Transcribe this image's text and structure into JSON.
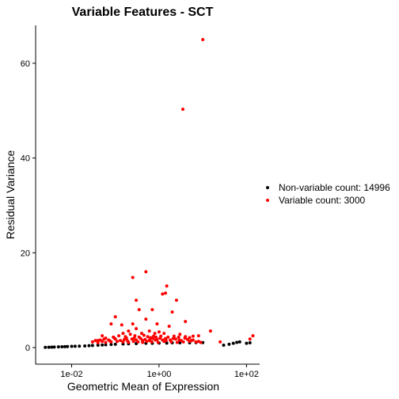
{
  "chart_data": {
    "type": "scatter",
    "title": "Variable Features - SCT",
    "xlabel": "Geometric Mean of Expression",
    "ylabel": "Residual Variance",
    "x_scale": "log10",
    "xlim": [
      0.0015,
      200
    ],
    "ylim": [
      -3.5,
      68
    ],
    "x_ticks": [
      0.01,
      1,
      100
    ],
    "x_tick_labels": [
      "1e-02",
      "1e+00",
      "1e+02"
    ],
    "y_ticks": [
      0,
      20,
      40,
      60
    ],
    "y_tick_labels": [
      "0",
      "20",
      "40",
      "60"
    ],
    "grid": false,
    "legend_position": "right",
    "series": [
      {
        "name": "Non-variable count: 14996",
        "color": "#000000",
        "points": [
          [
            0.0025,
            0.05
          ],
          [
            0.003,
            0.08
          ],
          [
            0.0035,
            0.1
          ],
          [
            0.004,
            0.12
          ],
          [
            0.005,
            0.15
          ],
          [
            0.006,
            0.18
          ],
          [
            0.007,
            0.2
          ],
          [
            0.008,
            0.22
          ],
          [
            0.01,
            0.25
          ],
          [
            0.012,
            0.28
          ],
          [
            0.015,
            0.3
          ],
          [
            0.02,
            0.35
          ],
          [
            0.025,
            0.4
          ],
          [
            0.03,
            0.45
          ],
          [
            0.04,
            0.5
          ],
          [
            0.05,
            0.55
          ],
          [
            0.06,
            0.6
          ],
          [
            0.08,
            0.65
          ],
          [
            0.1,
            0.7
          ],
          [
            0.15,
            0.75
          ],
          [
            0.2,
            0.8
          ],
          [
            0.3,
            0.85
          ],
          [
            0.5,
            0.9
          ],
          [
            0.7,
            0.9
          ],
          [
            1,
            0.95
          ],
          [
            1.5,
            0.95
          ],
          [
            2,
            1.0
          ],
          [
            3,
            1.0
          ],
          [
            5,
            1.0
          ],
          [
            7,
            1.05
          ],
          [
            10,
            1.05
          ],
          [
            30,
            0.5
          ],
          [
            40,
            0.7
          ],
          [
            50,
            0.9
          ],
          [
            60,
            1.1
          ],
          [
            70,
            1.2
          ],
          [
            100,
            0.9
          ],
          [
            120,
            1.0
          ]
        ]
      },
      {
        "name": "Variable count: 3000",
        "color": "#ff0000",
        "points": [
          [
            10,
            65
          ],
          [
            3.5,
            50.3
          ],
          [
            0.5,
            16
          ],
          [
            0.25,
            14.8
          ],
          [
            1.5,
            13
          ],
          [
            1.4,
            11.5
          ],
          [
            1.2,
            11.3
          ],
          [
            0.3,
            10
          ],
          [
            2.5,
            10
          ],
          [
            0.7,
            8
          ],
          [
            0.35,
            8
          ],
          [
            2,
            7.5
          ],
          [
            0.1,
            6.5
          ],
          [
            0.5,
            6
          ],
          [
            4,
            5.5
          ],
          [
            0.08,
            5
          ],
          [
            0.14,
            4.8
          ],
          [
            0.25,
            5
          ],
          [
            0.9,
            5
          ],
          [
            1.7,
            4.5
          ],
          [
            0.3,
            4
          ],
          [
            0.2,
            3.5
          ],
          [
            0.6,
            3.5
          ],
          [
            1,
            3.3
          ],
          [
            15,
            3.5
          ],
          [
            0.05,
            2.5
          ],
          [
            0.15,
            3
          ],
          [
            0.4,
            3
          ],
          [
            0.8,
            3
          ],
          [
            1.3,
            3
          ],
          [
            3,
            2.8
          ],
          [
            8,
            2.5
          ],
          [
            0.04,
            1.5
          ],
          [
            0.06,
            2
          ],
          [
            0.09,
            2.2
          ],
          [
            0.12,
            2.5
          ],
          [
            0.18,
            2
          ],
          [
            0.22,
            2.8
          ],
          [
            0.28,
            2.5
          ],
          [
            0.35,
            2.2
          ],
          [
            0.45,
            2.6
          ],
          [
            0.55,
            2.3
          ],
          [
            0.65,
            2.1
          ],
          [
            0.75,
            2.4
          ],
          [
            0.85,
            2.2
          ],
          [
            1.1,
            2.4
          ],
          [
            1.6,
            2.2
          ],
          [
            2.2,
            2.4
          ],
          [
            2.8,
            2.2
          ],
          [
            4,
            2.3
          ],
          [
            5,
            2.1
          ],
          [
            6,
            2.4
          ],
          [
            0.03,
            1.2
          ],
          [
            0.035,
            1.5
          ],
          [
            0.05,
            1.3
          ],
          [
            0.07,
            1.6
          ],
          [
            0.1,
            1.8
          ],
          [
            0.13,
            1.5
          ],
          [
            0.16,
            1.7
          ],
          [
            0.19,
            1.4
          ],
          [
            0.24,
            1.8
          ],
          [
            0.3,
            1.6
          ],
          [
            0.38,
            1.9
          ],
          [
            0.48,
            1.7
          ],
          [
            0.6,
            1.5
          ],
          [
            0.72,
            1.9
          ],
          [
            0.9,
            1.7
          ],
          [
            1.2,
            1.6
          ],
          [
            1.4,
            1.9
          ],
          [
            1.8,
            1.6
          ],
          [
            2.4,
            1.8
          ],
          [
            3.2,
            1.5
          ],
          [
            4.5,
            1.7
          ],
          [
            6,
            1.6
          ],
          [
            8,
            1.3
          ],
          [
            0.04,
            1.0
          ],
          [
            0.06,
            1.1
          ],
          [
            0.08,
            1.2
          ],
          [
            0.11,
            1.3
          ],
          [
            0.15,
            1.2
          ],
          [
            0.2,
            1.1
          ],
          [
            0.26,
            1.3
          ],
          [
            0.33,
            1.2
          ],
          [
            0.42,
            1.1
          ],
          [
            0.52,
            1.3
          ],
          [
            0.68,
            1.2
          ],
          [
            0.95,
            1.1
          ],
          [
            1.3,
            1.3
          ],
          [
            1.9,
            1.2
          ],
          [
            2.6,
            1.1
          ],
          [
            3.6,
            1.2
          ],
          [
            5,
            1.3
          ],
          [
            7,
            1.2
          ],
          [
            9,
            1.1
          ],
          [
            25,
            1.2
          ],
          [
            140,
            2.5
          ],
          [
            120,
            1.8
          ],
          [
            0.045,
            1.6
          ],
          [
            0.055,
            1.8
          ],
          [
            0.075,
            1.4
          ],
          [
            0.095,
            2.0
          ],
          [
            0.17,
            2.3
          ],
          [
            0.27,
            2.0
          ],
          [
            0.42,
            1.5
          ],
          [
            0.62,
            1.8
          ],
          [
            0.82,
            1.6
          ],
          [
            1.05,
            2.0
          ],
          [
            1.45,
            1.5
          ],
          [
            2.1,
            1.9
          ],
          [
            2.9,
            1.6
          ],
          [
            3.9,
            2.0
          ],
          [
            5.5,
            1.5
          ]
        ]
      }
    ]
  }
}
